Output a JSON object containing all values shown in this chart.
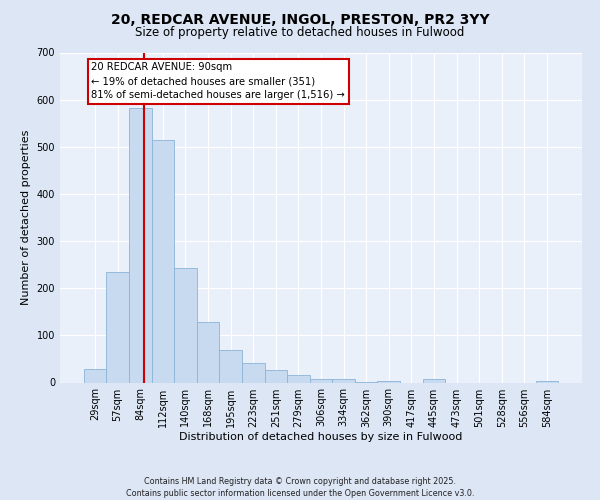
{
  "title": "20, REDCAR AVENUE, INGOL, PRESTON, PR2 3YY",
  "subtitle": "Size of property relative to detached houses in Fulwood",
  "xlabel": "Distribution of detached houses by size in Fulwood",
  "ylabel": "Number of detached properties",
  "bar_labels": [
    "29sqm",
    "57sqm",
    "84sqm",
    "112sqm",
    "140sqm",
    "168sqm",
    "195sqm",
    "223sqm",
    "251sqm",
    "279sqm",
    "306sqm",
    "334sqm",
    "362sqm",
    "390sqm",
    "417sqm",
    "445sqm",
    "473sqm",
    "501sqm",
    "528sqm",
    "556sqm",
    "584sqm"
  ],
  "bar_values": [
    28,
    235,
    582,
    515,
    243,
    128,
    70,
    42,
    27,
    15,
    8,
    7,
    2,
    3,
    0,
    8,
    0,
    0,
    0,
    0,
    3
  ],
  "bar_color": "#c8daf0",
  "bar_edge_color": "#8ab4d8",
  "vline_color": "#cc0000",
  "vline_x_index": 2.18,
  "annotation_title": "20 REDCAR AVENUE: 90sqm",
  "annotation_line1": "← 19% of detached houses are smaller (351)",
  "annotation_line2": "81% of semi-detached houses are larger (1,516) →",
  "annotation_box_facecolor": "#ffffff",
  "annotation_box_edgecolor": "#cc0000",
  "ylim": [
    0,
    700
  ],
  "yticks": [
    0,
    100,
    200,
    300,
    400,
    500,
    600,
    700
  ],
  "footer1": "Contains HM Land Registry data © Crown copyright and database right 2025.",
  "footer2": "Contains public sector information licensed under the Open Government Licence v3.0.",
  "bg_color": "#dce6f5",
  "plot_bg_color": "#eaf0fa",
  "grid_color": "#ffffff",
  "title_fontsize": 10,
  "subtitle_fontsize": 8.5,
  "xlabel_fontsize": 8,
  "ylabel_fontsize": 8,
  "tick_fontsize": 7,
  "footer_fontsize": 5.8
}
